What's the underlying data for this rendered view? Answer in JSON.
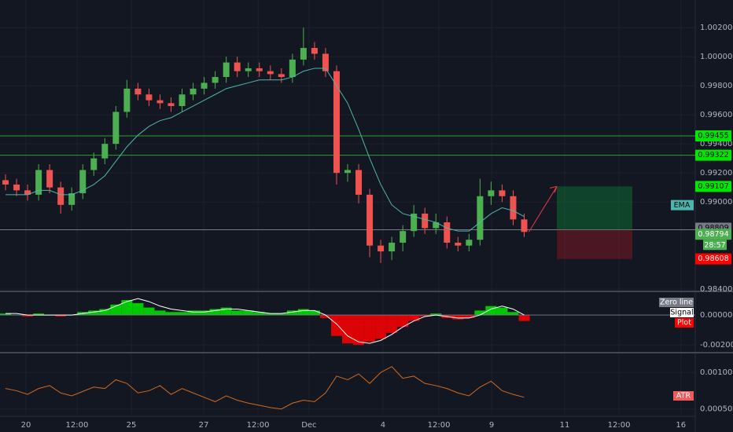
{
  "chart_data": [
    {
      "type": "candlestick",
      "xlim": [
        0,
        63
      ],
      "xticks": [
        {
          "value": 2.35,
          "label": "20"
        },
        {
          "value": 6.98,
          "label": "12:00"
        },
        {
          "value": 11.9,
          "label": "25"
        },
        {
          "value": 18.46,
          "label": "27"
        },
        {
          "value": 23.38,
          "label": "12:00"
        },
        {
          "value": 28.0,
          "label": "Dec"
        },
        {
          "value": 34.7,
          "label": "4"
        },
        {
          "value": 39.77,
          "label": "12:00"
        },
        {
          "value": 44.55,
          "label": "9"
        },
        {
          "value": 51.17,
          "label": "11"
        },
        {
          "value": 56.09,
          "label": "12:00"
        },
        {
          "value": 61.7,
          "label": "16"
        }
      ],
      "ylim": [
        0.9839,
        1.0039
      ],
      "yticks": [
        {
          "value": 1.002,
          "label": "1.00200"
        },
        {
          "value": 1.0,
          "label": "1.00000"
        },
        {
          "value": 0.998,
          "label": "0.99800"
        },
        {
          "value": 0.996,
          "label": "0.99600"
        },
        {
          "value": 0.994,
          "label": "0.99400"
        },
        {
          "value": 0.992,
          "label": "0.99200"
        },
        {
          "value": 0.99,
          "label": "0.99000"
        },
        {
          "value": 0.984,
          "label": "0.98400"
        }
      ],
      "grid": true,
      "up_color": "#4caf50",
      "down_color": "#ef5350",
      "x": [
        0.5,
        1.5,
        2.5,
        3.5,
        4.5,
        5.5,
        6.5,
        7.5,
        8.5,
        9.5,
        10.5,
        11.5,
        12.5,
        13.5,
        14.5,
        15.5,
        16.5,
        17.5,
        18.5,
        19.5,
        20.5,
        21.5,
        22.5,
        23.5,
        24.5,
        25.5,
        26.5,
        27.5,
        28.5,
        29.5,
        30.5,
        31.5,
        32.5,
        33.5,
        34.5,
        35.5,
        36.5,
        37.5,
        38.5,
        39.5,
        40.5,
        41.5,
        42.5,
        43.5,
        44.5,
        45.5,
        46.5,
        47.5
      ],
      "open": [
        0.9915,
        0.9912,
        0.9908,
        0.9905,
        0.9922,
        0.991,
        0.9898,
        0.9906,
        0.9922,
        0.993,
        0.994,
        0.9962,
        0.9978,
        0.9974,
        0.997,
        0.9968,
        0.9966,
        0.9974,
        0.9978,
        0.9982,
        0.9986,
        0.9996,
        0.999,
        0.9992,
        0.999,
        0.9988,
        0.9986,
        0.9998,
        1.0006,
        1.0002,
        0.999,
        0.992,
        0.9922,
        0.9905,
        0.987,
        0.9866,
        0.9872,
        0.988,
        0.9892,
        0.9882,
        0.9886,
        0.9872,
        0.987,
        0.9874,
        0.9904,
        0.9908,
        0.9904,
        0.9888
      ],
      "high": [
        0.9919,
        0.9916,
        0.9912,
        0.9926,
        0.9926,
        0.9914,
        0.991,
        0.9926,
        0.9934,
        0.9944,
        0.9966,
        0.9984,
        0.9982,
        0.9978,
        0.9974,
        0.9972,
        0.9978,
        0.9982,
        0.9986,
        0.999,
        1.0,
        1.0,
        0.9996,
        0.9996,
        0.9994,
        0.9992,
        1.0002,
        1.002,
        1.001,
        1.0006,
        0.9994,
        0.9926,
        0.9926,
        0.9909,
        0.9874,
        0.9876,
        0.9884,
        0.9898,
        0.9896,
        0.9892,
        0.989,
        0.9876,
        0.9878,
        0.9916,
        0.9914,
        0.9912,
        0.9908,
        0.9892
      ],
      "low": [
        0.9908,
        0.9904,
        0.9901,
        0.9901,
        0.9906,
        0.9892,
        0.9894,
        0.9902,
        0.9918,
        0.9926,
        0.9936,
        0.9958,
        0.997,
        0.9966,
        0.9964,
        0.9962,
        0.9962,
        0.997,
        0.9974,
        0.9978,
        0.9982,
        0.9986,
        0.9986,
        0.9986,
        0.9984,
        0.9982,
        0.9982,
        0.9994,
        0.9998,
        0.9986,
        0.9912,
        0.9914,
        0.9899,
        0.9862,
        0.9858,
        0.986,
        0.9866,
        0.9876,
        0.9878,
        0.9878,
        0.9868,
        0.9866,
        0.9866,
        0.987,
        0.9898,
        0.99,
        0.9884,
        0.9876
      ],
      "close": [
        0.9912,
        0.9908,
        0.9905,
        0.9922,
        0.991,
        0.9898,
        0.9906,
        0.9922,
        0.993,
        0.994,
        0.9962,
        0.9978,
        0.9974,
        0.997,
        0.9968,
        0.9966,
        0.9974,
        0.9978,
        0.9982,
        0.9986,
        0.9996,
        0.999,
        0.9992,
        0.999,
        0.9988,
        0.9986,
        0.9998,
        1.0006,
        1.0002,
        0.999,
        0.992,
        0.9922,
        0.9905,
        0.987,
        0.9866,
        0.9872,
        0.988,
        0.9892,
        0.9882,
        0.9886,
        0.9872,
        0.987,
        0.9874,
        0.9904,
        0.9908,
        0.9904,
        0.9888,
        0.98794
      ],
      "series": [
        {
          "name": "EMA",
          "color": "#4db6ac",
          "values": [
            0.9905,
            0.9905,
            0.9905,
            0.9908,
            0.9908,
            0.9905,
            0.9905,
            0.9908,
            0.9912,
            0.9918,
            0.9928,
            0.9938,
            0.9946,
            0.9952,
            0.9956,
            0.9958,
            0.9962,
            0.9966,
            0.997,
            0.9974,
            0.9978,
            0.998,
            0.9982,
            0.9984,
            0.9984,
            0.9984,
            0.9986,
            0.999,
            0.9992,
            0.9992,
            0.998,
            0.9968,
            0.995,
            0.993,
            0.9912,
            0.9898,
            0.9892,
            0.989,
            0.9888,
            0.9886,
            0.9882,
            0.988,
            0.988,
            0.9886,
            0.9892,
            0.9896,
            0.9894,
            0.989
          ]
        }
      ],
      "levels": [
        {
          "value": 0.99455,
          "color": "#2ca02c"
        },
        {
          "value": 0.99322,
          "color": "#2ca02c"
        },
        {
          "value": 0.98809,
          "color": "#787b86"
        }
      ],
      "position": {
        "x0": 50.46,
        "x1": 57.3,
        "entry": 0.98809,
        "target": 0.99107,
        "stop": 0.98608
      },
      "countdown": "28:57"
    },
    {
      "type": "histogram",
      "ylim": [
        -0.00247,
        0.00153
      ],
      "yticks": [
        {
          "value": 0,
          "label": "0.00000"
        },
        {
          "value": -0.002,
          "label": "-0.00200"
        }
      ],
      "series": [
        {
          "name": "Plot",
          "color": "#ff0000",
          "positive_color": "#00e600",
          "values": [
            0.0001,
            0,
            -0.0001,
            0.0001,
            0,
            -0.0001,
            0,
            0.0002,
            0.0003,
            0.0004,
            0.0007,
            0.001,
            0.0008,
            0.0005,
            0.0003,
            0.0002,
            0.0002,
            0.0003,
            0.0003,
            0.0004,
            0.0005,
            0.0003,
            0.0003,
            0.0002,
            0.0001,
            0.0001,
            0.0003,
            0.0004,
            0.0003,
            -0.0002,
            -0.0014,
            -0.0019,
            -0.002,
            -0.0018,
            -0.0016,
            -0.0012,
            -0.0008,
            -0.0004,
            -0.0001,
            0.0001,
            -0.0002,
            -0.0003,
            -0.0002,
            0.0003,
            0.0006,
            0.0005,
            0.0002,
            -0.0004
          ]
        },
        {
          "name": "Signal",
          "color": "#ffffff",
          "values": [
            0.0001,
            0.0001,
            0,
            0,
            0,
            0,
            0,
            0.0001,
            0.0002,
            0.0003,
            0.0006,
            0.0009,
            0.0011,
            0.0009,
            0.0006,
            0.0004,
            0.0003,
            0.0002,
            0.0002,
            0.0003,
            0.0004,
            0.0004,
            0.0003,
            0.0002,
            0.0001,
            0.0001,
            0.0002,
            0.0003,
            0.0003,
            0,
            -0.0006,
            -0.0014,
            -0.0018,
            -0.0019,
            -0.0017,
            -0.0013,
            -0.0008,
            -0.0004,
            -0.0001,
            0,
            -0.0001,
            -0.0002,
            -0.0002,
            0,
            0.0004,
            0.0006,
            0.0004,
            0
          ]
        },
        {
          "name": "Zero line",
          "color": "#787b86"
        }
      ]
    },
    {
      "type": "line",
      "ylim": [
        0.0004,
        0.00126
      ],
      "yticks": [
        {
          "value": 0.001,
          "label": "0.00100"
        },
        {
          "value": 0.0005,
          "label": "0.00050"
        }
      ],
      "series": [
        {
          "name": "ATR",
          "color": "#d2691e",
          "values": [
            0.00078,
            0.00075,
            0.0007,
            0.00078,
            0.00082,
            0.00072,
            0.00068,
            0.00074,
            0.0008,
            0.00078,
            0.0009,
            0.00085,
            0.00072,
            0.00075,
            0.00082,
            0.0007,
            0.00078,
            0.00072,
            0.00066,
            0.0006,
            0.00068,
            0.00062,
            0.00058,
            0.00055,
            0.00052,
            0.0005,
            0.00058,
            0.00062,
            0.0006,
            0.00072,
            0.00095,
            0.0009,
            0.00098,
            0.00085,
            0.001,
            0.00108,
            0.00092,
            0.00095,
            0.00085,
            0.00082,
            0.00078,
            0.00072,
            0.00068,
            0.0008,
            0.00088,
            0.00075,
            0.0007,
            0.00066
          ]
        }
      ]
    }
  ]
}
